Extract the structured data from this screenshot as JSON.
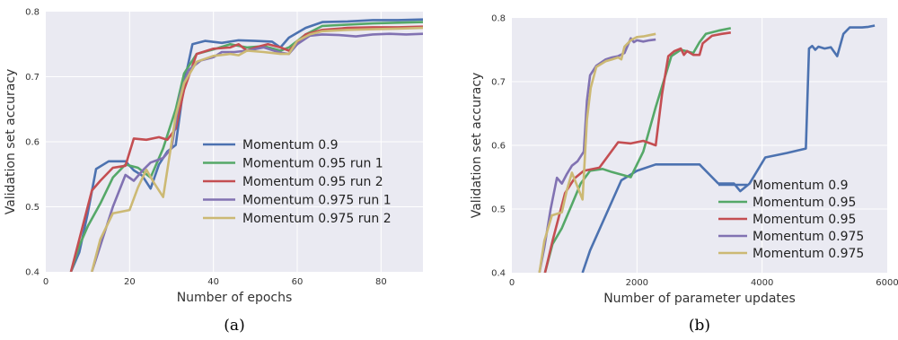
{
  "chart_data": [
    {
      "type": "line",
      "caption": "(a)",
      "title": "",
      "xlabel": "Number of epochs",
      "ylabel": "Validation set accuracy",
      "xlim": [
        0,
        90
      ],
      "ylim": [
        0.4,
        0.8
      ],
      "xticks": [
        0,
        20,
        40,
        60,
        80
      ],
      "yticks": [
        0.4,
        0.5,
        0.6,
        0.7,
        0.8
      ],
      "grid": true,
      "legend_position": "center-right",
      "series": [
        {
          "name": "Momentum 0.9",
          "color": "#4c72b0",
          "points": [
            [
              6,
              0.4
            ],
            [
              8,
              0.43
            ],
            [
              10,
              0.49
            ],
            [
              12,
              0.558
            ],
            [
              15,
              0.57
            ],
            [
              19,
              0.57
            ],
            [
              21,
              0.556
            ],
            [
              23,
              0.548
            ],
            [
              25,
              0.528
            ],
            [
              27,
              0.565
            ],
            [
              29,
              0.585
            ],
            [
              31,
              0.595
            ],
            [
              33,
              0.69
            ],
            [
              35,
              0.75
            ],
            [
              38,
              0.755
            ],
            [
              42,
              0.752
            ],
            [
              46,
              0.756
            ],
            [
              50,
              0.755
            ],
            [
              54,
              0.754
            ],
            [
              56,
              0.745
            ],
            [
              58,
              0.76
            ],
            [
              62,
              0.775
            ],
            [
              66,
              0.784
            ],
            [
              72,
              0.785
            ],
            [
              78,
              0.787
            ],
            [
              84,
              0.787
            ],
            [
              90,
              0.788
            ]
          ]
        },
        {
          "name": "Momentum 0.95 run 1",
          "color": "#55a868",
          "points": [
            [
              6,
              0.4
            ],
            [
              8,
              0.44
            ],
            [
              10,
              0.47
            ],
            [
              13,
              0.505
            ],
            [
              16,
              0.545
            ],
            [
              19,
              0.565
            ],
            [
              22,
              0.56
            ],
            [
              25,
              0.545
            ],
            [
              28,
              0.59
            ],
            [
              31,
              0.65
            ],
            [
              33,
              0.705
            ],
            [
              36,
              0.735
            ],
            [
              40,
              0.742
            ],
            [
              44,
              0.75
            ],
            [
              48,
              0.745
            ],
            [
              52,
              0.747
            ],
            [
              56,
              0.74
            ],
            [
              58,
              0.745
            ],
            [
              62,
              0.765
            ],
            [
              66,
              0.778
            ],
            [
              72,
              0.78
            ],
            [
              78,
              0.782
            ],
            [
              84,
              0.783
            ],
            [
              90,
              0.784
            ]
          ]
        },
        {
          "name": "Momentum 0.95 run 2",
          "color": "#c44e52",
          "points": [
            [
              6,
              0.4
            ],
            [
              8,
              0.45
            ],
            [
              11,
              0.525
            ],
            [
              13,
              0.54
            ],
            [
              16,
              0.56
            ],
            [
              19,
              0.563
            ],
            [
              21,
              0.605
            ],
            [
              24,
              0.603
            ],
            [
              27,
              0.607
            ],
            [
              29,
              0.603
            ],
            [
              31,
              0.62
            ],
            [
              33,
              0.68
            ],
            [
              36,
              0.735
            ],
            [
              40,
              0.743
            ],
            [
              44,
              0.745
            ],
            [
              46,
              0.75
            ],
            [
              48,
              0.74
            ],
            [
              50,
              0.745
            ],
            [
              53,
              0.75
            ],
            [
              56,
              0.745
            ],
            [
              58,
              0.74
            ],
            [
              62,
              0.765
            ],
            [
              66,
              0.772
            ],
            [
              72,
              0.775
            ],
            [
              78,
              0.776
            ],
            [
              84,
              0.776
            ],
            [
              90,
              0.777
            ]
          ]
        },
        {
          "name": "Momentum 0.975 run 1",
          "color": "#8172b2",
          "points": [
            [
              11,
              0.4
            ],
            [
              13,
              0.44
            ],
            [
              16,
              0.5
            ],
            [
              19,
              0.549
            ],
            [
              21,
              0.54
            ],
            [
              23,
              0.555
            ],
            [
              25,
              0.568
            ],
            [
              28,
              0.575
            ],
            [
              30,
              0.59
            ],
            [
              32,
              0.67
            ],
            [
              34,
              0.71
            ],
            [
              37,
              0.725
            ],
            [
              40,
              0.73
            ],
            [
              42,
              0.738
            ],
            [
              45,
              0.738
            ],
            [
              48,
              0.74
            ],
            [
              52,
              0.745
            ],
            [
              56,
              0.737
            ],
            [
              58,
              0.735
            ],
            [
              60,
              0.75
            ],
            [
              63,
              0.763
            ],
            [
              66,
              0.765
            ],
            [
              70,
              0.764
            ],
            [
              74,
              0.762
            ],
            [
              78,
              0.765
            ],
            [
              82,
              0.766
            ],
            [
              86,
              0.765
            ],
            [
              90,
              0.766
            ]
          ]
        },
        {
          "name": "Momentum 0.975 run 2",
          "color": "#ccb974",
          "points": [
            [
              11,
              0.4
            ],
            [
              13,
              0.45
            ],
            [
              16,
              0.49
            ],
            [
              20,
              0.495
            ],
            [
              22,
              0.53
            ],
            [
              24,
              0.557
            ],
            [
              26,
              0.535
            ],
            [
              28,
              0.515
            ],
            [
              31,
              0.64
            ],
            [
              33,
              0.69
            ],
            [
              36,
              0.723
            ],
            [
              40,
              0.732
            ],
            [
              44,
              0.735
            ],
            [
              46,
              0.733
            ],
            [
              48,
              0.74
            ],
            [
              52,
              0.738
            ],
            [
              56,
              0.735
            ],
            [
              58,
              0.735
            ],
            [
              60,
              0.755
            ],
            [
              63,
              0.765
            ],
            [
              66,
              0.77
            ],
            [
              72,
              0.772
            ],
            [
              78,
              0.773
            ],
            [
              84,
              0.774
            ],
            [
              90,
              0.775
            ]
          ]
        }
      ]
    },
    {
      "type": "line",
      "caption": "(b)",
      "title": "",
      "xlabel": "Number of parameter updates",
      "ylabel": "Validation set accuracy",
      "xlim": [
        0,
        6000
      ],
      "ylim": [
        0.4,
        0.8
      ],
      "xticks": [
        0,
        2000,
        4000,
        6000
      ],
      "yticks": [
        0.4,
        0.5,
        0.6,
        0.7,
        0.8
      ],
      "grid": true,
      "legend_position": "lower-right",
      "series": [
        {
          "name": "Momentum 0.9",
          "color": "#4c72b0",
          "points": [
            [
              1130,
              0.4
            ],
            [
              1250,
              0.435
            ],
            [
              1500,
              0.49
            ],
            [
              1750,
              0.545
            ],
            [
              2000,
              0.56
            ],
            [
              2300,
              0.57
            ],
            [
              2700,
              0.57
            ],
            [
              3000,
              0.57
            ],
            [
              3300,
              0.54
            ],
            [
              3550,
              0.54
            ],
            [
              3650,
              0.528
            ],
            [
              3800,
              0.54
            ],
            [
              4050,
              0.581
            ],
            [
              4400,
              0.588
            ],
            [
              4700,
              0.595
            ],
            [
              4750,
              0.752
            ],
            [
              4800,
              0.756
            ],
            [
              4850,
              0.75
            ],
            [
              4900,
              0.755
            ],
            [
              5000,
              0.752
            ],
            [
              5100,
              0.754
            ],
            [
              5200,
              0.74
            ],
            [
              5300,
              0.775
            ],
            [
              5400,
              0.785
            ],
            [
              5500,
              0.785
            ],
            [
              5600,
              0.785
            ],
            [
              5700,
              0.786
            ],
            [
              5800,
              0.788
            ]
          ]
        },
        {
          "name": "Momentum 0.95",
          "color": "#55a868",
          "points": [
            [
              530,
              0.4
            ],
            [
              650,
              0.445
            ],
            [
              800,
              0.47
            ],
            [
              950,
              0.505
            ],
            [
              1100,
              0.54
            ],
            [
              1250,
              0.56
            ],
            [
              1450,
              0.563
            ],
            [
              1600,
              0.558
            ],
            [
              1900,
              0.55
            ],
            [
              2100,
              0.59
            ],
            [
              2300,
              0.66
            ],
            [
              2550,
              0.74
            ],
            [
              2700,
              0.75
            ],
            [
              2900,
              0.745
            ],
            [
              3000,
              0.762
            ],
            [
              3100,
              0.775
            ],
            [
              3300,
              0.78
            ],
            [
              3500,
              0.784
            ]
          ]
        },
        {
          "name": "Momentum 0.95",
          "color": "#c44e52",
          "points": [
            [
              530,
              0.4
            ],
            [
              650,
              0.45
            ],
            [
              850,
              0.525
            ],
            [
              1000,
              0.548
            ],
            [
              1150,
              0.56
            ],
            [
              1400,
              0.565
            ],
            [
              1700,
              0.605
            ],
            [
              1900,
              0.603
            ],
            [
              2100,
              0.607
            ],
            [
              2300,
              0.6
            ],
            [
              2400,
              0.68
            ],
            [
              2500,
              0.74
            ],
            [
              2600,
              0.748
            ],
            [
              2700,
              0.752
            ],
            [
              2750,
              0.742
            ],
            [
              2800,
              0.748
            ],
            [
              2900,
              0.742
            ],
            [
              3000,
              0.742
            ],
            [
              3050,
              0.76
            ],
            [
              3200,
              0.772
            ],
            [
              3350,
              0.775
            ],
            [
              3500,
              0.777
            ]
          ]
        },
        {
          "name": "Momentum 0.975",
          "color": "#8172b2",
          "points": [
            [
              440,
              0.4
            ],
            [
              520,
              0.44
            ],
            [
              620,
              0.5
            ],
            [
              720,
              0.549
            ],
            [
              800,
              0.54
            ],
            [
              880,
              0.555
            ],
            [
              960,
              0.568
            ],
            [
              1050,
              0.575
            ],
            [
              1150,
              0.59
            ],
            [
              1200,
              0.67
            ],
            [
              1250,
              0.71
            ],
            [
              1350,
              0.725
            ],
            [
              1500,
              0.735
            ],
            [
              1600,
              0.738
            ],
            [
              1700,
              0.74
            ],
            [
              1800,
              0.745
            ],
            [
              1900,
              0.768
            ],
            [
              1950,
              0.762
            ],
            [
              2000,
              0.765
            ],
            [
              2100,
              0.763
            ],
            [
              2200,
              0.765
            ],
            [
              2300,
              0.766
            ]
          ]
        },
        {
          "name": "Momentum 0.975",
          "color": "#ccb974",
          "points": [
            [
              440,
              0.4
            ],
            [
              520,
              0.45
            ],
            [
              640,
              0.49
            ],
            [
              800,
              0.495
            ],
            [
              880,
              0.53
            ],
            [
              960,
              0.557
            ],
            [
              1050,
              0.535
            ],
            [
              1130,
              0.515
            ],
            [
              1200,
              0.64
            ],
            [
              1260,
              0.69
            ],
            [
              1350,
              0.723
            ],
            [
              1500,
              0.732
            ],
            [
              1600,
              0.735
            ],
            [
              1700,
              0.738
            ],
            [
              1750,
              0.735
            ],
            [
              1800,
              0.755
            ],
            [
              1900,
              0.765
            ],
            [
              2000,
              0.77
            ],
            [
              2100,
              0.771
            ],
            [
              2200,
              0.773
            ],
            [
              2300,
              0.775
            ]
          ]
        }
      ]
    }
  ]
}
